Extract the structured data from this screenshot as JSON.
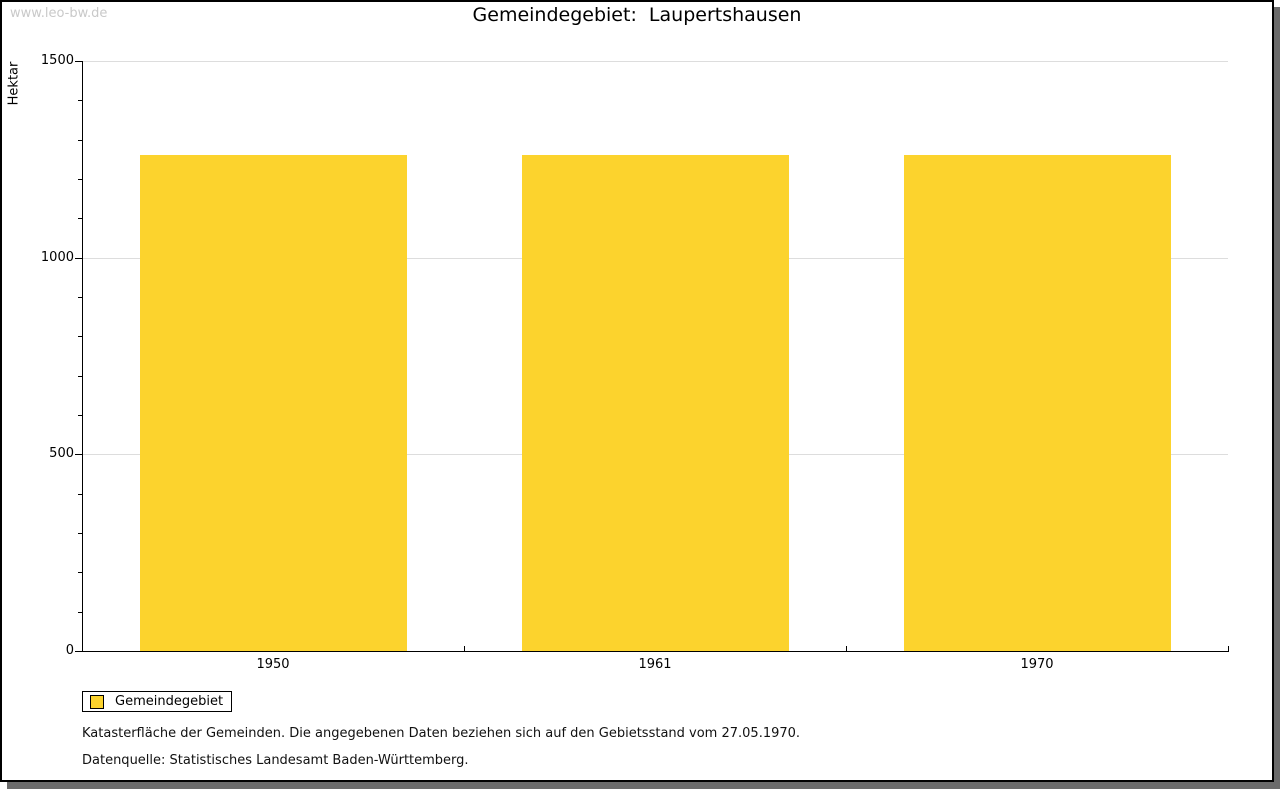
{
  "watermark": "www.leo-bw.de",
  "title": "Gemeindegebiet:  Laupertshausen",
  "chart_data": {
    "type": "bar",
    "title": "Gemeindegebiet: Laupertshausen",
    "categories": [
      "1950",
      "1961",
      "1970"
    ],
    "series": [
      {
        "name": "Gemeindegebiet",
        "values": [
          1261,
          1261,
          1261
        ]
      }
    ],
    "xlabel": "",
    "ylabel": "Hektar",
    "ylim": [
      0,
      1500
    ],
    "yticks": [
      0,
      500,
      1000,
      1500
    ],
    "minor_tick_step": 100,
    "grid": true,
    "legend_position": "bottom-left",
    "bar_color": "#FCD32D"
  },
  "legend": {
    "label": "Gemeindegebiet",
    "swatch_color": "#FCD32D"
  },
  "footer": {
    "line1": "Katasterfläche der Gemeinden. Die angegebenen Daten beziehen sich auf den Gebietsstand vom 27.05.1970.",
    "line2": "Datenquelle: Statistisches Landesamt Baden-Württemberg."
  },
  "colors": {
    "bar": "#FCD32D",
    "grid": "#DDDDDD",
    "axis": "#000000",
    "watermark": "#C9C9C9",
    "shadow": "#6B6B6B"
  }
}
